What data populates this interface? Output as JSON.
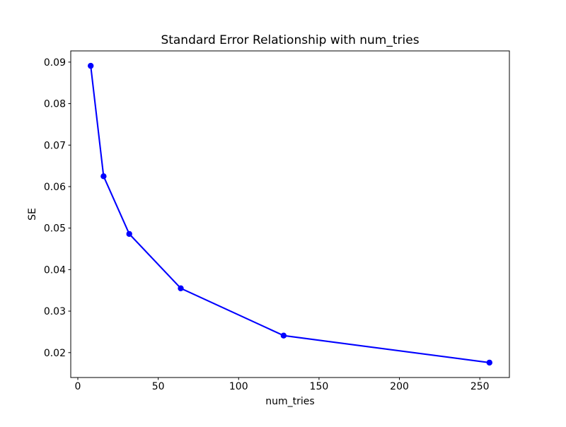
{
  "figure": {
    "background": "#ffffff"
  },
  "chart_data": {
    "type": "line",
    "title": "Standard Error Relationship with num_tries",
    "xlabel": "num_tries",
    "ylabel": "SE",
    "x": [
      8,
      16,
      32,
      64,
      128,
      256
    ],
    "y": [
      0.0891,
      0.0625,
      0.0486,
      0.0355,
      0.0241,
      0.0176
    ],
    "xticks": [
      0,
      50,
      100,
      150,
      200,
      250
    ],
    "yticks": [
      0.02,
      0.03,
      0.04,
      0.05,
      0.06,
      0.07,
      0.08,
      0.09
    ],
    "xlim": [
      -4.4,
      268.4
    ],
    "ylim": [
      0.014,
      0.0927
    ],
    "line_color": "#0000ff",
    "marker": "circle",
    "grid": false,
    "legend": "none"
  }
}
